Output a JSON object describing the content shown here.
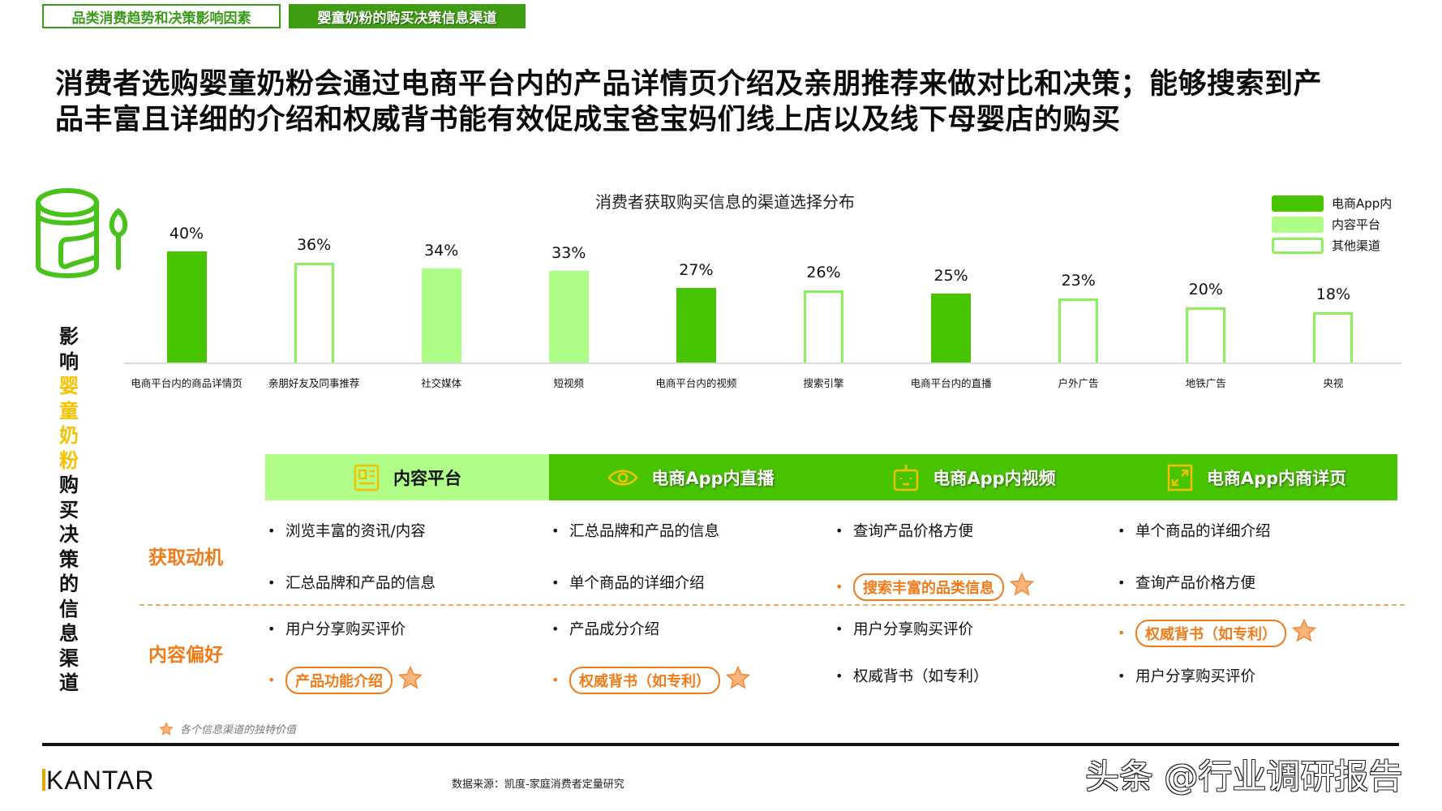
{
  "tabs": [
    {
      "label": "品类消费趋势和决策影响因素",
      "active": false
    },
    {
      "label": "婴童奶粉的购买决策信息渠道",
      "active": true
    }
  ],
  "headline": {
    "line1": "消费者选购婴童奶粉会通过电商平台内的产品详情页介绍及亲朋推荐来做对比和决策；能够搜索到产",
    "line2": "品丰富且详细的介绍和权威背书能有效促成宝爸宝妈们线上店以及线下母婴店的购买"
  },
  "side_title": {
    "part1": "影响",
    "highlight": "婴童奶粉",
    "part2": "购买决策的信息渠道"
  },
  "icon": "milk-powder-can-with-spoon-icon",
  "colors": {
    "ecommerce": "#47c400",
    "content": "#adfd86",
    "other_border": "#8bf05c",
    "accent_orange": "#f07b1a",
    "highlight_yellow": "#f6c200",
    "tab_green": "#3f9d13"
  },
  "chart_data": {
    "type": "bar",
    "title": "消费者获取购买信息的渠道选择分布",
    "xlabel": "",
    "ylabel": "",
    "ylim": [
      0,
      45
    ],
    "grid": false,
    "legend_position": "top-right",
    "categories": [
      "电商平台内的商品详情页",
      "亲朋好友及同事推荐",
      "社交媒体",
      "短视频",
      "电商平台内的视频",
      "搜索引擎",
      "电商平台内的直播",
      "户外广告",
      "地铁广告",
      "央视"
    ],
    "values": [
      40,
      36,
      34,
      33,
      27,
      26,
      25,
      23,
      20,
      18
    ],
    "value_labels": [
      "40%",
      "36%",
      "34%",
      "33%",
      "27%",
      "26%",
      "25%",
      "23%",
      "20%",
      "18%"
    ],
    "series_type": [
      "电商App内",
      "其他渠道",
      "内容平台",
      "内容平台",
      "电商App内",
      "其他渠道",
      "电商App内",
      "其他渠道",
      "其他渠道",
      "其他渠道"
    ],
    "legend": [
      "电商App内",
      "内容平台",
      "其他渠道"
    ]
  },
  "table": {
    "columns": [
      {
        "label": "内容平台",
        "icon": "news-document-icon"
      },
      {
        "label": "电商App内直播",
        "icon": "eye-icon"
      },
      {
        "label": "电商App内视频",
        "icon": "robot-tv-icon"
      },
      {
        "label": "电商App内商详页",
        "icon": "expand-arrows-icon"
      }
    ],
    "rows": [
      {
        "label": "获取动机",
        "cells": [
          [
            "浏览丰富的资讯/内容",
            "汇总品牌和产品的信息"
          ],
          [
            "汇总品牌和产品的信息",
            "单个商品的详细介绍"
          ],
          [
            "查询产品价格方便",
            "搜索丰富的品类信息"
          ],
          [
            "单个商品的详细介绍",
            "查询产品价格方便"
          ]
        ]
      },
      {
        "label": "内容偏好",
        "cells": [
          [
            "用户分享购买评价",
            "产品功能介绍"
          ],
          [
            "产品成分介绍",
            "权威背书（如专利）"
          ],
          [
            "用户分享购买评价",
            "权威背书（如专利）"
          ],
          [
            "权威背书（如专利）",
            "用户分享购买评价"
          ]
        ]
      }
    ]
  },
  "footnote": "各个信息渠道的独特价值",
  "footer": {
    "brand": "KANTAR",
    "source": "数据来源：凯度-家庭消费者定量研究",
    "watermark": "头条 @行业调研报告"
  }
}
